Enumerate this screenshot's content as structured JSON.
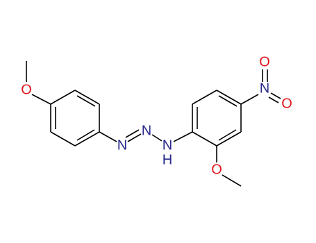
{
  "atoms": [
    {
      "label": "O"
    },
    {
      "label": "N"
    },
    {
      "label": "N"
    },
    {
      "label": "N",
      "sub": "H"
    },
    {
      "label": "N"
    },
    {
      "label": "O"
    },
    {
      "label": "O"
    },
    {
      "label": "O"
    }
  ]
}
